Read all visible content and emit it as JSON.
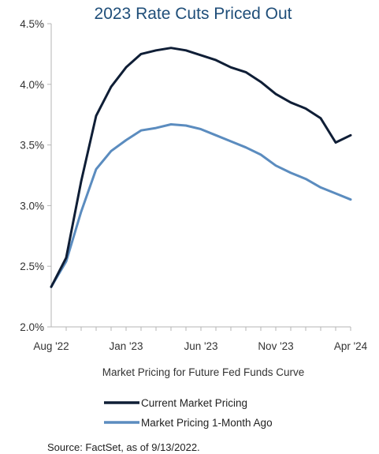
{
  "chart_data": {
    "type": "line",
    "title": "2023 Rate Cuts Priced Out",
    "xlabel": "Market Pricing for Future Fed Funds Curve",
    "ylabel": "",
    "x_tick_labels": [
      "Aug '22",
      "Jan '23",
      "Jun '23",
      "Nov '23",
      "Apr '24"
    ],
    "y_tick_labels": [
      "2.0%",
      "2.5%",
      "3.0%",
      "3.5%",
      "4.0%",
      "4.5%"
    ],
    "ylim": [
      2.0,
      4.5
    ],
    "grid": false,
    "legend_position": "bottom",
    "x": [
      "Aug '22",
      "Sep '22",
      "Oct '22",
      "Nov '22",
      "Dec '22",
      "Jan '23",
      "Feb '23",
      "Mar '23",
      "Apr '23",
      "May '23",
      "Jun '23",
      "Jul '23",
      "Aug '23",
      "Sep '23",
      "Oct '23",
      "Nov '23",
      "Dec '23",
      "Jan '24",
      "Feb '24",
      "Mar '24",
      "Apr '24"
    ],
    "series": [
      {
        "name": "Current Market Pricing",
        "color": "#0f1e36",
        "values": [
          2.33,
          2.57,
          3.2,
          3.74,
          3.98,
          4.14,
          4.25,
          4.28,
          4.3,
          4.28,
          4.24,
          4.2,
          4.14,
          4.1,
          4.02,
          3.92,
          3.85,
          3.8,
          3.72,
          3.52,
          3.58
        ]
      },
      {
        "name": "Market Pricing 1-Month Ago",
        "color": "#5b8cbf",
        "values": [
          2.33,
          2.54,
          2.95,
          3.3,
          3.45,
          3.54,
          3.62,
          3.64,
          3.67,
          3.66,
          3.63,
          3.58,
          3.53,
          3.48,
          3.42,
          3.33,
          3.27,
          3.22,
          3.15,
          3.1,
          3.05
        ]
      }
    ]
  },
  "legend": {
    "current_label": "Current Market Pricing",
    "month_ago_label": "Market Pricing 1-Month Ago"
  },
  "source": "Source: FactSet, as of 9/13/2022."
}
